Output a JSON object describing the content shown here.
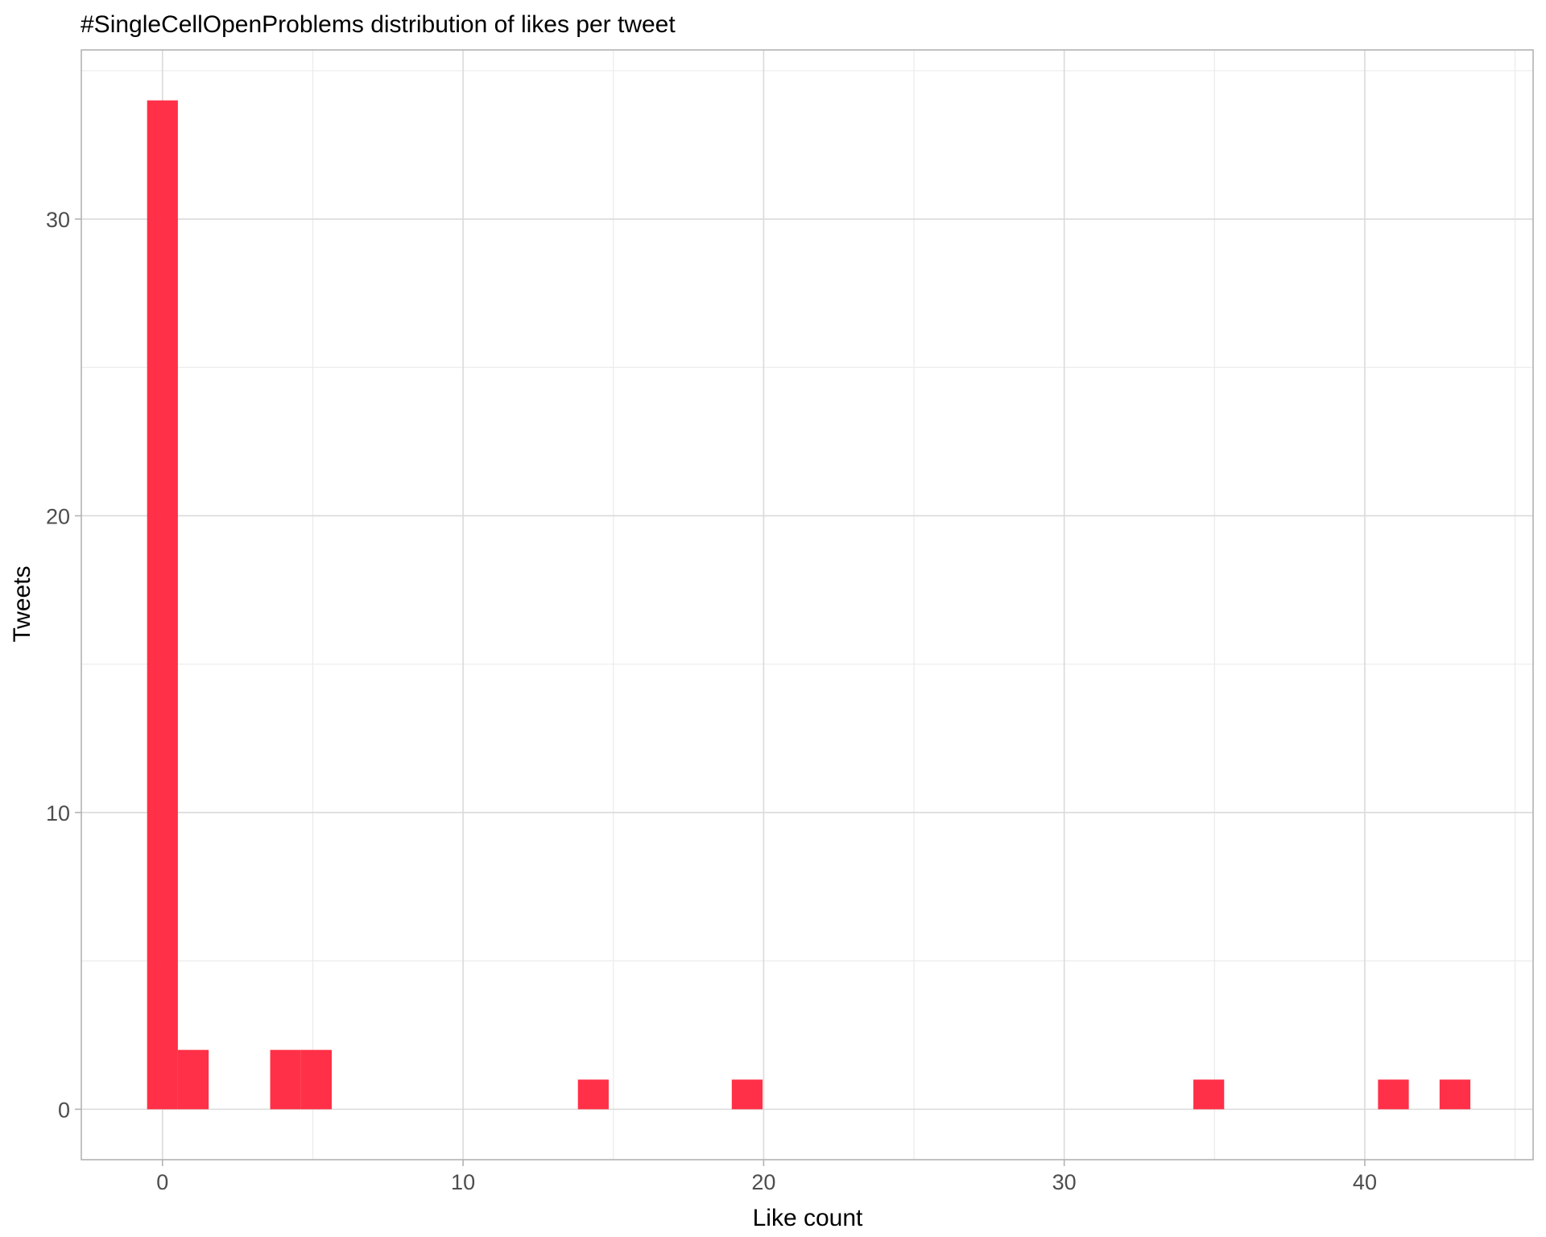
{
  "chart_data": {
    "type": "bar",
    "title": "#SingleCellOpenProblems distribution of likes per tweet",
    "xlabel": "Like count",
    "ylabel": "Tweets",
    "xlim": [
      -2.7,
      45.6
    ],
    "ylim": [
      -1.7,
      35.7
    ],
    "x_ticks": [
      0,
      10,
      20,
      30,
      40
    ],
    "y_ticks": [
      0,
      10,
      20,
      30
    ],
    "x_tick_labels": [
      "0",
      "10",
      "20",
      "30",
      "40"
    ],
    "y_tick_labels": [
      "0",
      "10",
      "20",
      "30"
    ],
    "grid": true,
    "bin_width": 1.024,
    "bins": [
      {
        "x": 0,
        "count": 34
      },
      {
        "x": 1.024,
        "count": 2
      },
      {
        "x": 4.095,
        "count": 2
      },
      {
        "x": 5.119,
        "count": 2
      },
      {
        "x": 14.333,
        "count": 1
      },
      {
        "x": 19.452,
        "count": 1
      },
      {
        "x": 34.809,
        "count": 1
      },
      {
        "x": 40.952,
        "count": 1
      },
      {
        "x": 43.0,
        "count": 1
      }
    ],
    "colors": {
      "bar": "#FF3047",
      "grid_major": "#DADADA",
      "grid_minor": "#EBEBEB",
      "panel_border": "#B3B3B3",
      "text": "#000000",
      "tick_text": "#4D4D4D"
    }
  }
}
